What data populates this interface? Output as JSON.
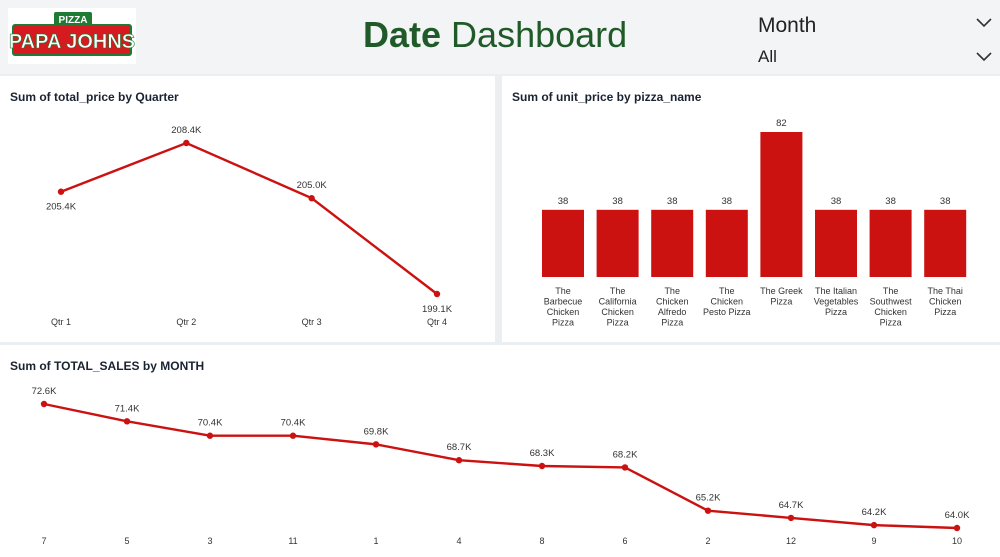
{
  "header": {
    "logo_text": "PAPA JOHNS",
    "logo_small_text": "PIZZA",
    "title_bold": "Date",
    "title_rest": "Dashboard",
    "slicer_title": "Month",
    "slicer_value": "All"
  },
  "colors": {
    "series": "#cc1111",
    "title_green": "#1f5a28",
    "axis_text": "#333333"
  },
  "chart_data": [
    {
      "type": "line",
      "title": "Sum of total_price by Quarter",
      "categories": [
        "Qtr 1",
        "Qtr 2",
        "Qtr 3",
        "Qtr 4"
      ],
      "values": [
        205.4,
        208.4,
        205.0,
        199.1
      ],
      "labels": [
        "205.4K",
        "208.4K",
        "205.0K",
        "199.1K"
      ],
      "unit": "K",
      "ylim": [
        199.1,
        208.4
      ],
      "grid": false
    },
    {
      "type": "bar",
      "title": "Sum of unit_price by pizza_name",
      "categories": [
        [
          "The",
          "Barbecue",
          "Chicken",
          "Pizza"
        ],
        [
          "The",
          "California",
          "Chicken",
          "Pizza"
        ],
        [
          "The",
          "Chicken",
          "Alfredo",
          "Pizza"
        ],
        [
          "The",
          "Chicken",
          "Pesto Pizza"
        ],
        [
          "The Greek",
          "Pizza"
        ],
        [
          "The Italian",
          "Vegetables",
          "Pizza"
        ],
        [
          "The",
          "Southwest",
          "Chicken",
          "Pizza"
        ],
        [
          "The Thai",
          "Chicken",
          "Pizza"
        ]
      ],
      "values": [
        38,
        38,
        38,
        38,
        82,
        38,
        38,
        38
      ],
      "ylim": [
        0,
        82
      ],
      "grid": false
    },
    {
      "type": "line",
      "title": "Sum of TOTAL_SALES by MONTH",
      "categories": [
        "7",
        "5",
        "3",
        "11",
        "1",
        "4",
        "8",
        "6",
        "2",
        "12",
        "9",
        "10"
      ],
      "values": [
        72.6,
        71.4,
        70.4,
        70.4,
        69.8,
        68.7,
        68.3,
        68.2,
        65.2,
        64.7,
        64.2,
        64.0
      ],
      "labels": [
        "72.6K",
        "71.4K",
        "70.4K",
        "70.4K",
        "69.8K",
        "68.7K",
        "68.3K",
        "68.2K",
        "65.2K",
        "64.7K",
        "64.2K",
        "64.0K"
      ],
      "unit": "K",
      "ylim": [
        64.0,
        72.6
      ],
      "grid": false
    }
  ]
}
